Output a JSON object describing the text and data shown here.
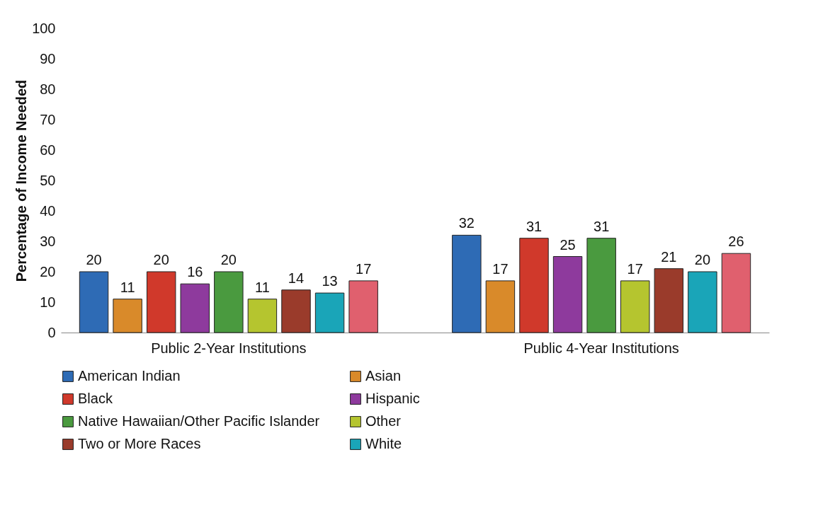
{
  "chart_data": {
    "type": "bar",
    "ylabel": "Percentage of Income Needed",
    "categories": [
      "Public 2-Year Institutions",
      "Public 4-Year Institutions"
    ],
    "series": [
      {
        "name": "American Indian",
        "color": "#2e6bb5",
        "values": [
          20,
          32
        ]
      },
      {
        "name": "Asian",
        "color": "#d98a2a",
        "values": [
          11,
          17
        ]
      },
      {
        "name": "Black",
        "color": "#d0392b",
        "values": [
          20,
          31
        ]
      },
      {
        "name": "Hispanic",
        "color": "#8e3a9d",
        "values": [
          16,
          25
        ]
      },
      {
        "name": "Native Hawaiian/Other Pacific Islander",
        "color": "#4a9a3f",
        "values": [
          20,
          31
        ]
      },
      {
        "name": "Other",
        "color": "#b5c52f",
        "values": [
          11,
          17
        ]
      },
      {
        "name": "Two or More Races",
        "color": "#9a3b2b",
        "values": [
          14,
          21
        ]
      },
      {
        "name": "White",
        "color": "#1aa5b8",
        "values": [
          13,
          20
        ]
      },
      {
        "color": "#e0606e",
        "values": [
          17,
          26
        ]
      }
    ],
    "ylim": [
      0,
      100
    ],
    "yticks": [
      0,
      10,
      20,
      30,
      40,
      50,
      60,
      70,
      80,
      90,
      100
    ],
    "grid": false,
    "legend": "bottom",
    "data_labels": true
  }
}
